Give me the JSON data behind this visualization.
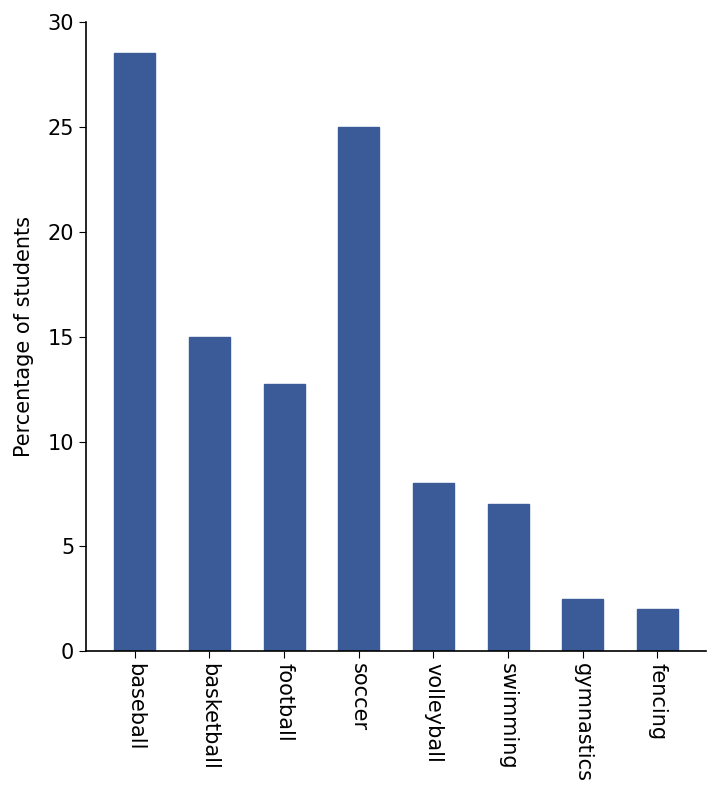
{
  "categories": [
    "baseball",
    "basketball",
    "football",
    "soccer",
    "volleyball",
    "swimming",
    "gymnastics",
    "fencing"
  ],
  "values": [
    28.5,
    15.0,
    12.75,
    25.0,
    8.0,
    7.0,
    2.5,
    2.0
  ],
  "bar_color": "#3A5A98",
  "ylabel": "Percentage of students",
  "ylim": [
    0,
    30
  ],
  "yticks": [
    0,
    5,
    10,
    15,
    20,
    25,
    30
  ],
  "background_color": "#ffffff",
  "bar_width": 0.55,
  "ylabel_fontsize": 15,
  "tick_fontsize": 15,
  "xtick_fontsize": 15
}
